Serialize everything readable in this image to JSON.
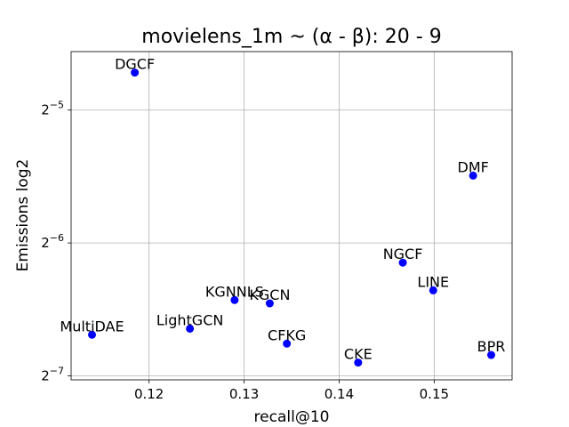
{
  "chart_data": {
    "type": "scatter",
    "title": "movielens_1m ~ (α - β): 20 - 9",
    "xlabel": "recall@10",
    "ylabel": "Emissions log2",
    "xscale": "linear",
    "yscale": "log2",
    "xlim": [
      0.1118,
      0.1582
    ],
    "ylim": [
      0.00765,
      0.0424
    ],
    "xticks": [
      0.12,
      0.13,
      0.14,
      0.15
    ],
    "xtick_labels": [
      "0.12",
      "0.13",
      "0.14",
      "0.15"
    ],
    "yticks": [
      {
        "value": 0.0078125,
        "base": "2",
        "exp": "−7"
      },
      {
        "value": 0.015625,
        "base": "2",
        "exp": "−6"
      },
      {
        "value": 0.03125,
        "base": "2",
        "exp": "−5"
      }
    ],
    "grid": true,
    "marker_color": "#0000ff",
    "points": [
      {
        "label": "DGCF",
        "x": 0.1185,
        "y": 0.038
      },
      {
        "label": "DMF",
        "x": 0.1541,
        "y": 0.0222
      },
      {
        "label": "NGCF",
        "x": 0.1467,
        "y": 0.0141
      },
      {
        "label": "LINE",
        "x": 0.1499,
        "y": 0.0122
      },
      {
        "label": "KGNNLS",
        "x": 0.129,
        "y": 0.0116
      },
      {
        "label": "KGCN",
        "x": 0.1327,
        "y": 0.0114
      },
      {
        "label": "MultiDAE",
        "x": 0.114,
        "y": 0.00968
      },
      {
        "label": "LightGCN",
        "x": 0.1243,
        "y": 0.00999
      },
      {
        "label": "CFKG",
        "x": 0.1345,
        "y": 0.00924
      },
      {
        "label": "CKE",
        "x": 0.142,
        "y": 0.00837
      },
      {
        "label": "BPR",
        "x": 0.156,
        "y": 0.00871
      }
    ]
  }
}
